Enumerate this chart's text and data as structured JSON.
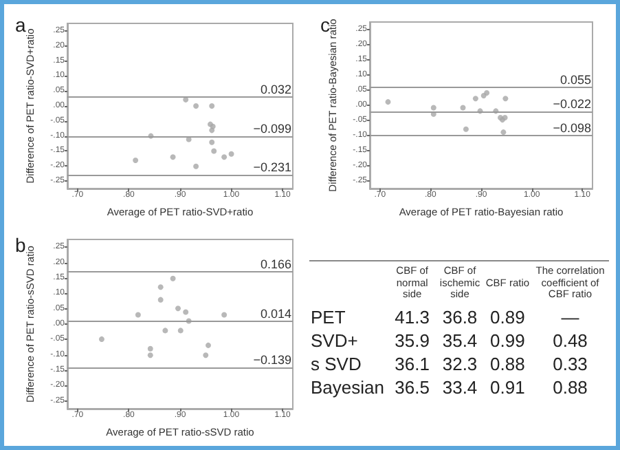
{
  "chart_data": [
    {
      "type": "scatter",
      "title": "a",
      "xlabel": "Average of PET ratio-SVD+ratio",
      "ylabel": "Difference of PET ratio-SVD+ratio",
      "color": "#a6a6a6",
      "marker": "circle",
      "grid": false,
      "x": [
        0.911,
        0.931,
        0.962,
        0.959,
        0.964,
        0.962,
        0.843,
        0.917,
        0.962,
        0.966,
        0.886,
        0.813,
        0.931,
        0.986,
        1.0
      ],
      "values": [
        0.021,
        0.0,
        0.0,
        -0.061,
        -0.068,
        -0.081,
        -0.1,
        -0.111,
        -0.121,
        -0.15,
        -0.17,
        -0.181,
        -0.201,
        -0.17,
        -0.16
      ],
      "xlim": [
        0.68,
        1.12
      ],
      "ylim": [
        -0.275,
        0.275
      ],
      "xticks": [
        {
          "value": 0.7,
          "label": ".70"
        },
        {
          "value": 0.8,
          "label": ".80"
        },
        {
          "value": 0.9,
          "label": ".90"
        },
        {
          "value": 1.0,
          "label": "1.00"
        },
        {
          "value": 1.1,
          "label": "1.10"
        }
      ],
      "yticks": [
        {
          "value": -0.25,
          "label": "-.25"
        },
        {
          "value": -0.2,
          "label": "-.20"
        },
        {
          "value": -0.15,
          "label": "-.15"
        },
        {
          "value": -0.1,
          "label": "-.10"
        },
        {
          "value": -0.05,
          "label": "-.05"
        },
        {
          "value": 0,
          "label": ".00"
        },
        {
          "value": 0.05,
          "label": ".05"
        },
        {
          "value": 0.1,
          "label": ".10"
        },
        {
          "value": 0.15,
          "label": ".15"
        },
        {
          "value": 0.2,
          "label": ".20"
        },
        {
          "value": 0.25,
          "label": ".25"
        }
      ],
      "ref_lines": [
        {
          "axis": "y",
          "value": 0.032,
          "label": "0.032"
        },
        {
          "axis": "y",
          "value": -0.099,
          "label": "−0.099"
        },
        {
          "axis": "y",
          "value": -0.231,
          "label": "−0.231"
        }
      ]
    },
    {
      "type": "scatter",
      "title": "c",
      "xlabel": "Average of PET ratio-Bayesian ratio",
      "ylabel": "Difference of PET ratio-Bayesian ratio",
      "color": "#a6a6a6",
      "marker": "circle",
      "grid": false,
      "x": [
        0.716,
        0.806,
        0.806,
        0.864,
        0.87,
        0.889,
        0.898,
        0.905,
        0.911,
        0.929,
        0.938,
        0.942,
        0.947,
        0.948,
        0.944
      ],
      "values": [
        0.011,
        -0.008,
        -0.029,
        -0.008,
        -0.079,
        0.022,
        -0.019,
        0.032,
        0.041,
        -0.019,
        -0.041,
        -0.048,
        -0.041,
        0.022,
        -0.089
      ],
      "xlim": [
        0.68,
        1.12
      ],
      "ylim": [
        -0.275,
        0.275
      ],
      "xticks": [
        {
          "value": 0.7,
          "label": ".70"
        },
        {
          "value": 0.8,
          "label": ".80"
        },
        {
          "value": 0.9,
          "label": ".90"
        },
        {
          "value": 1.0,
          "label": "1.00"
        },
        {
          "value": 1.1,
          "label": "1.10"
        }
      ],
      "yticks": [
        {
          "value": -0.25,
          "label": "-.25"
        },
        {
          "value": -0.2,
          "label": "-.20"
        },
        {
          "value": -0.15,
          "label": "-.15"
        },
        {
          "value": -0.1,
          "label": "-.10"
        },
        {
          "value": -0.05,
          "label": "-.05"
        },
        {
          "value": 0,
          "label": ".00"
        },
        {
          "value": 0.05,
          "label": ".05"
        },
        {
          "value": 0.1,
          "label": ".10"
        },
        {
          "value": 0.15,
          "label": ".15"
        },
        {
          "value": 0.2,
          "label": ".20"
        },
        {
          "value": 0.25,
          "label": ".25"
        }
      ],
      "ref_lines": [
        {
          "axis": "y",
          "value": 0.055,
          "label": "0.055"
        },
        {
          "axis": "y",
          "value": -0.022,
          "label": "−0.022"
        },
        {
          "axis": "y",
          "value": -0.098,
          "label": "−0.098"
        }
      ]
    },
    {
      "type": "scatter",
      "title": "b",
      "xlabel": "Average of PET ratio-sSVD ratio",
      "ylabel": "Difference of PET ratio-sSVD ratio",
      "color": "#a6a6a6",
      "marker": "circle",
      "grid": false,
      "x": [
        0.886,
        0.862,
        0.862,
        0.818,
        0.896,
        0.911,
        0.917,
        0.986,
        0.871,
        0.901,
        0.747,
        0.842,
        0.842,
        0.955,
        0.95
      ],
      "values": [
        0.148,
        0.12,
        0.079,
        0.03,
        0.051,
        0.039,
        0.01,
        0.03,
        -0.021,
        -0.021,
        -0.049,
        -0.08,
        -0.101,
        -0.069,
        -0.101
      ],
      "xlim": [
        0.68,
        1.12
      ],
      "ylim": [
        -0.275,
        0.275
      ],
      "xticks": [
        {
          "value": 0.7,
          "label": ".70"
        },
        {
          "value": 0.8,
          "label": ".80"
        },
        {
          "value": 0.9,
          "label": ".90"
        },
        {
          "value": 1.0,
          "label": "1.00"
        },
        {
          "value": 1.1,
          "label": "1.10"
        }
      ],
      "yticks": [
        {
          "value": -0.25,
          "label": "-.25"
        },
        {
          "value": -0.2,
          "label": "-.20"
        },
        {
          "value": -0.15,
          "label": "-.15"
        },
        {
          "value": -0.1,
          "label": "-.10"
        },
        {
          "value": -0.05,
          "label": "-.05"
        },
        {
          "value": 0,
          "label": ".00"
        },
        {
          "value": 0.05,
          "label": ".05"
        },
        {
          "value": 0.1,
          "label": ".10"
        },
        {
          "value": 0.15,
          "label": ".15"
        },
        {
          "value": 0.2,
          "label": ".20"
        },
        {
          "value": 0.25,
          "label": ".25"
        }
      ],
      "ref_lines": [
        {
          "axis": "y",
          "value": 0.166,
          "label": "0.166"
        },
        {
          "axis": "y",
          "value": 0.014,
          "label": "0.014"
        },
        {
          "axis": "y",
          "value": -0.139,
          "label": "−0.139"
        }
      ]
    },
    {
      "type": "other",
      "categories": [
        "CBF of normal side",
        "CBF of ischemic side",
        "CBF ratio",
        "The correlation coefficient of CBF ratio"
      ],
      "y_categories": [
        "PET",
        "SVD+",
        "s SVD",
        "Bayesian"
      ],
      "cell_labels": [
        [
          "41.3",
          "36.8",
          "0.89",
          "—"
        ],
        [
          "35.9",
          "35.4",
          "0.99",
          "0.48"
        ],
        [
          "36.1",
          "32.3",
          "0.88",
          "0.33"
        ],
        [
          "36.5",
          "33.4",
          "0.91",
          "0.88"
        ]
      ]
    }
  ]
}
